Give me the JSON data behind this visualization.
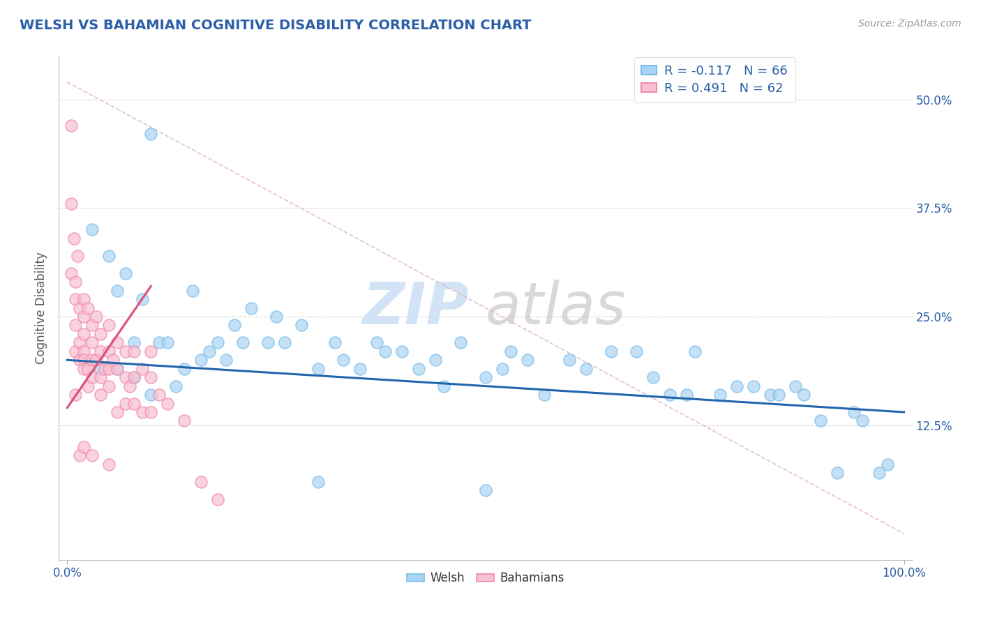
{
  "title": "WELSH VS BAHAMIAN COGNITIVE DISABILITY CORRELATION CHART",
  "source": "Source: ZipAtlas.com",
  "ylabel": "Cognitive Disability",
  "xlim": [
    0.0,
    100.0
  ],
  "ylim": [
    0.0,
    55.0
  ],
  "welsh_color": "#7bbde8",
  "welsh_fill_color": "#aad4f5",
  "bahamian_color": "#f08aaa",
  "bahamian_fill_color": "#f8c0d0",
  "welsh_line_color": "#2166ac",
  "bahamian_line_color": "#d94f7a",
  "ref_line_color": "#e0b0c0",
  "watermark_zip_color": "#ccdff5",
  "watermark_atlas_color": "#c8c8c8",
  "legend_r_welsh": "R = -0.117",
  "legend_n_welsh": "N = 66",
  "legend_r_bahamian": "R = 0.491",
  "legend_n_bahamian": "N = 62",
  "background_color": "#ffffff",
  "grid_color": "#d8d8d8",
  "title_color": "#2b5fa8",
  "tick_color": "#2b5fa8",
  "source_color": "#999999",
  "axis_label_color": "#555555",
  "welsh_x": [
    3,
    5,
    6,
    7,
    8,
    9,
    10,
    11,
    12,
    13,
    14,
    15,
    16,
    17,
    18,
    19,
    20,
    21,
    22,
    24,
    25,
    26,
    28,
    30,
    32,
    33,
    35,
    37,
    38,
    40,
    42,
    44,
    45,
    47,
    50,
    52,
    53,
    55,
    57,
    60,
    62,
    65,
    68,
    70,
    72,
    74,
    75,
    78,
    80,
    82,
    84,
    85,
    87,
    88,
    90,
    92,
    94,
    95,
    97,
    98,
    4,
    6,
    8,
    10,
    30,
    50
  ],
  "welsh_y": [
    35,
    32,
    28,
    30,
    22,
    27,
    46,
    22,
    22,
    17,
    19,
    28,
    20,
    21,
    22,
    20,
    24,
    22,
    26,
    22,
    25,
    22,
    24,
    19,
    22,
    20,
    19,
    22,
    21,
    21,
    19,
    20,
    17,
    22,
    18,
    19,
    21,
    20,
    16,
    20,
    19,
    21,
    21,
    18,
    16,
    16,
    21,
    16,
    17,
    17,
    16,
    16,
    17,
    16,
    13,
    7,
    14,
    13,
    7,
    8,
    19,
    19,
    18,
    16,
    6,
    5
  ],
  "bahamian_x": [
    0.5,
    0.5,
    0.5,
    0.8,
    1,
    1,
    1,
    1,
    1,
    1.2,
    1.5,
    1.5,
    1.5,
    1.5,
    2,
    2,
    2,
    2,
    2,
    2,
    2,
    2.5,
    2.5,
    2.5,
    3,
    3,
    3,
    3,
    3,
    3.5,
    3.5,
    4,
    4,
    4,
    4,
    4.5,
    5,
    5,
    5,
    5,
    5,
    5.5,
    6,
    6,
    6,
    7,
    7,
    7,
    7.5,
    8,
    8,
    8,
    9,
    9,
    10,
    10,
    10,
    11,
    12,
    14,
    16,
    18
  ],
  "bahamian_y": [
    47,
    38,
    30,
    34,
    29,
    27,
    24,
    21,
    16,
    32,
    26,
    22,
    20,
    9,
    27,
    25,
    23,
    21,
    20,
    19,
    10,
    26,
    19,
    17,
    24,
    22,
    20,
    18,
    9,
    25,
    20,
    23,
    21,
    18,
    16,
    19,
    24,
    21,
    19,
    17,
    8,
    20,
    22,
    19,
    14,
    21,
    18,
    15,
    17,
    21,
    18,
    15,
    19,
    14,
    21,
    18,
    14,
    16,
    15,
    13,
    6,
    4
  ],
  "welsh_line_x": [
    0,
    100
  ],
  "welsh_line_y": [
    20.0,
    14.0
  ],
  "bahamian_line_x": [
    0,
    10
  ],
  "bahamian_line_y": [
    14.5,
    28.5
  ],
  "ref_line_x": [
    0,
    100
  ],
  "ref_line_y": [
    52,
    0
  ]
}
